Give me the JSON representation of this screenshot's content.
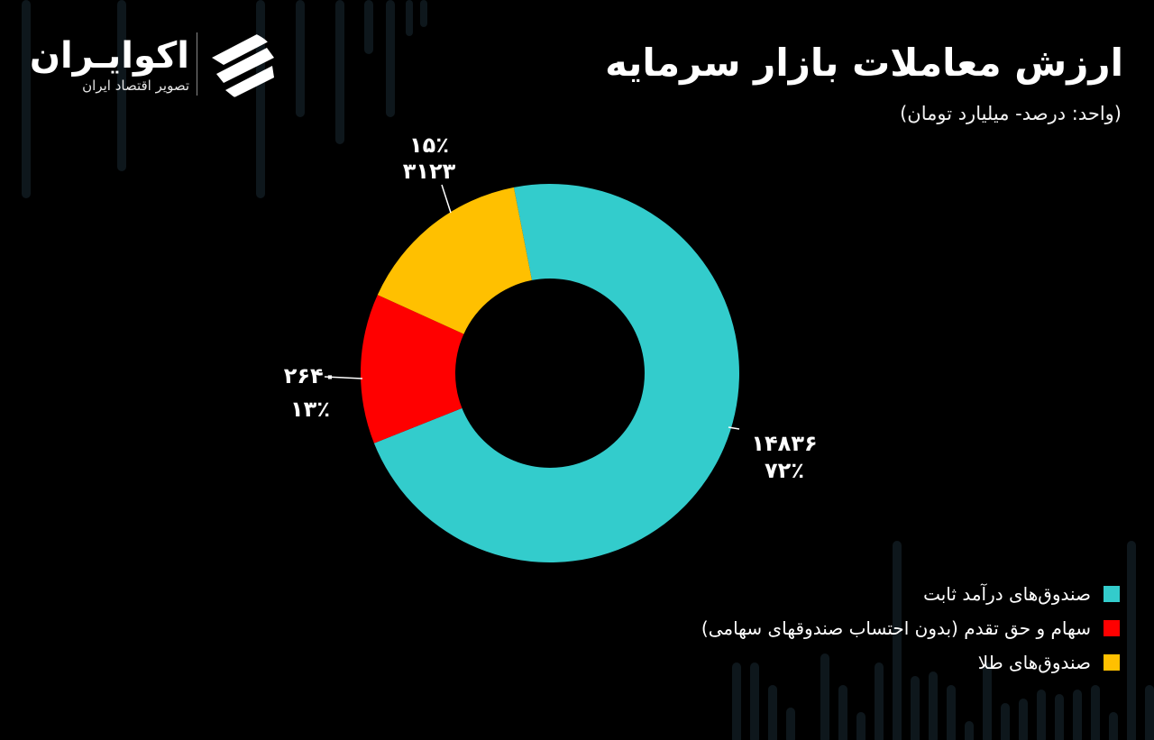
{
  "brand": {
    "name": "اکوایـران",
    "tagline": "تصویر اقتصاد ایران"
  },
  "title": "ارزش معاملات بازار سرمایه",
  "subtitle": "(واحد: درصد- میلیارد تومان)",
  "chart_data": {
    "type": "pie",
    "donut": true,
    "series": [
      {
        "name": "صندوق‌های درآمد ثابت",
        "value": 14836,
        "value_label": "۱۴۸۳۶",
        "percent": 72,
        "percent_label": "۷۲٪",
        "color": "#33CCCC"
      },
      {
        "name": "سهام و حق تقدم (بدون احتساب صندوقهای سهامی)",
        "value": 2640,
        "value_label": "۲۶۴۰",
        "percent": 13,
        "percent_label": "۱۳٪",
        "color": "#FF0000"
      },
      {
        "name": "صندوق‌های طلا",
        "value": 3123,
        "value_label": "۳۱۲۳",
        "percent": 15,
        "percent_label": "۱۵٪",
        "color": "#FFC000"
      }
    ],
    "legend_position": "bottom-right"
  }
}
